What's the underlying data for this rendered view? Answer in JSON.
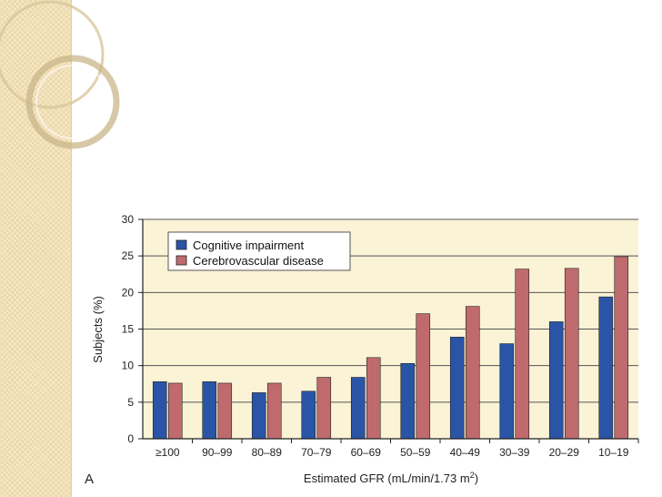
{
  "panel_label": "A",
  "colors": {
    "cognitive": "#2a55a7",
    "cerebro": "#bf6b6e",
    "plot_bg": "#fbf3d6",
    "sidebar": "#f6e7c2"
  },
  "chart_data": {
    "type": "bar",
    "title": "",
    "xlabel_main": "Estimated GFR (mL/min/1.73 m",
    "xlabel_sup": "2",
    "xlabel_end": ")",
    "ylabel": "Subjects (%)",
    "ylim": [
      0,
      30
    ],
    "yticks": [
      0,
      5,
      10,
      15,
      20,
      25,
      30
    ],
    "grid": "horizontal",
    "legend_position": "top-left",
    "categories": [
      "≥100",
      "90–99",
      "80–89",
      "70–79",
      "60–69",
      "50–59",
      "40–49",
      "30–39",
      "20–29",
      "10–19"
    ],
    "series": [
      {
        "name": "Cognitive impairment",
        "values": [
          7.8,
          7.8,
          6.3,
          6.5,
          8.4,
          10.3,
          13.9,
          13.0,
          16.0,
          19.4
        ]
      },
      {
        "name": "Cerebrovascular disease",
        "values": [
          7.6,
          7.6,
          7.6,
          8.4,
          11.1,
          17.1,
          18.1,
          23.2,
          23.3,
          24.9
        ]
      }
    ]
  }
}
